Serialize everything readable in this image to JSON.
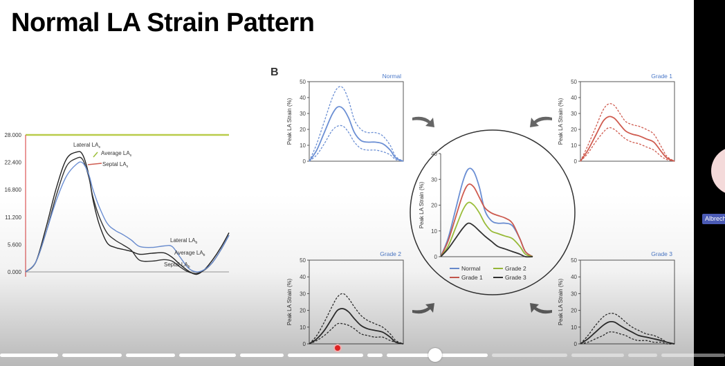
{
  "slide": {
    "title": "Normal LA Strain Pattern",
    "panel_b_letter": "B"
  },
  "presenter": {
    "name": "Albrecht"
  },
  "colors": {
    "normal": "#6b8fd4",
    "grade1": "#cf5b4f",
    "grade2": "#9cbf3a",
    "grade3": "#333333",
    "panel_title": "#4a78c8"
  },
  "chart_data": [
    {
      "type": "line",
      "id": "left-trace",
      "title": "",
      "y_ticks": [
        "28.000",
        "22.400",
        "16.800",
        "11.200",
        "5.600",
        "0.000"
      ],
      "ylim": [
        0,
        28
      ],
      "xlim": [
        0,
        100
      ],
      "annotations": {
        "lateral_las": "Lateral LA",
        "average_las": "Average LA",
        "septal_las": "Septal LA",
        "lateral_lab": "Lateral LA",
        "average_lab": "Average LA",
        "septal_lab": "Septal LA",
        "sub_s": "s",
        "sub_b": "b"
      },
      "series": [
        {
          "name": "Lateral LA",
          "color": "#222222",
          "x": [
            0,
            5,
            10,
            15,
            20,
            25,
            28,
            31,
            33,
            36,
            40,
            44,
            48,
            52,
            56,
            62,
            68,
            72,
            76,
            80,
            84,
            88,
            92,
            96,
            100
          ],
          "y": [
            0,
            2,
            9,
            17,
            23,
            24.5,
            24,
            20,
            15,
            10,
            6,
            5,
            4.6,
            4.2,
            3.6,
            3.8,
            3.9,
            3,
            1.5,
            0.2,
            -0.5,
            0.5,
            2.5,
            5,
            8
          ]
        },
        {
          "name": "Average LA",
          "color": "#333333",
          "x": [
            0,
            5,
            10,
            15,
            20,
            25,
            28,
            31,
            33,
            36,
            40,
            44,
            48,
            52,
            56,
            62,
            68,
            72,
            76,
            80,
            84,
            88,
            92,
            96,
            100
          ],
          "y": [
            0,
            2,
            8,
            15.5,
            21.5,
            23.2,
            23,
            19.5,
            15.5,
            11.5,
            8,
            6.5,
            5.5,
            4.4,
            2.4,
            2.2,
            2.5,
            2.2,
            1,
            0,
            -0.3,
            0.4,
            2,
            4.5,
            7.5
          ]
        },
        {
          "name": "Septal LA",
          "color": "#6b8fd4",
          "x": [
            0,
            5,
            10,
            15,
            20,
            25,
            28,
            31,
            33,
            36,
            40,
            44,
            48,
            52,
            56,
            62,
            68,
            72,
            76,
            80,
            84,
            88,
            92,
            96,
            100
          ],
          "y": [
            0,
            2,
            8,
            14.5,
            19.5,
            22,
            22.3,
            20,
            17,
            13.5,
            10,
            8.5,
            7.6,
            6.5,
            5.2,
            5,
            5.3,
            5.2,
            3,
            0.8,
            0,
            0.5,
            2,
            4.5,
            7.5
          ]
        }
      ]
    },
    {
      "type": "line",
      "id": "panel-normal",
      "title": "Normal",
      "ylabel": "Peak LA Strain (%)",
      "y_ticks": [
        "0",
        "10",
        "20",
        "30",
        "40",
        "50"
      ],
      "ylim": [
        0,
        50
      ],
      "series": [
        {
          "name": "mean",
          "style": "solid",
          "color": "#6b8fd4",
          "x": [
            0,
            8,
            16,
            24,
            30,
            36,
            42,
            48,
            55,
            62,
            70,
            78,
            86,
            92,
            100
          ],
          "y": [
            0,
            7,
            18,
            29,
            34,
            33,
            27,
            18,
            13,
            12,
            12,
            11,
            7,
            2,
            0
          ]
        },
        {
          "name": "upper",
          "style": "dashed",
          "color": "#6b8fd4",
          "x": [
            0,
            8,
            16,
            24,
            30,
            36,
            42,
            48,
            55,
            62,
            70,
            78,
            86,
            92,
            100
          ],
          "y": [
            0,
            11,
            25,
            39,
            46,
            46,
            38,
            26,
            20,
            18,
            18,
            16,
            10,
            3,
            0
          ]
        },
        {
          "name": "lower",
          "style": "dashed",
          "color": "#6b8fd4",
          "x": [
            0,
            8,
            16,
            24,
            30,
            36,
            42,
            48,
            55,
            62,
            70,
            78,
            86,
            92,
            100
          ],
          "y": [
            0,
            4,
            11,
            19,
            22,
            22,
            18,
            12,
            8,
            7,
            7,
            6,
            4,
            1,
            0
          ]
        }
      ]
    },
    {
      "type": "line",
      "id": "panel-grade1",
      "title": "Grade 1",
      "ylabel": "Peak LA Strain (%)",
      "y_ticks": [
        "0",
        "10",
        "20",
        "30",
        "40",
        "50"
      ],
      "ylim": [
        0,
        50
      ],
      "series": [
        {
          "name": "mean",
          "style": "solid",
          "color": "#cf5b4f",
          "x": [
            0,
            8,
            16,
            24,
            30,
            36,
            42,
            48,
            55,
            62,
            70,
            78,
            86,
            92,
            100
          ],
          "y": [
            0,
            7,
            16,
            25,
            28,
            27,
            23,
            19,
            17,
            16,
            14,
            12,
            6,
            2,
            0
          ]
        },
        {
          "name": "upper",
          "style": "dashed",
          "color": "#cf5b4f",
          "x": [
            0,
            8,
            16,
            24,
            30,
            36,
            42,
            48,
            55,
            62,
            70,
            78,
            86,
            92,
            100
          ],
          "y": [
            0,
            10,
            21,
            32,
            36,
            35,
            30,
            25,
            23,
            22,
            20,
            17,
            9,
            3,
            0
          ]
        },
        {
          "name": "lower",
          "style": "dashed",
          "color": "#cf5b4f",
          "x": [
            0,
            8,
            16,
            24,
            30,
            36,
            42,
            48,
            55,
            62,
            70,
            78,
            86,
            92,
            100
          ],
          "y": [
            0,
            5,
            12,
            18,
            21,
            20,
            17,
            14,
            12,
            11,
            9,
            7,
            3,
            1,
            0
          ]
        }
      ]
    },
    {
      "type": "line",
      "id": "panel-grade2",
      "title": "Grade 2",
      "ylabel": "Peak LA Strain (%)",
      "y_ticks": [
        "0",
        "10",
        "20",
        "30",
        "40",
        "50"
      ],
      "ylim": [
        0,
        50
      ],
      "series": [
        {
          "name": "mean",
          "style": "solid",
          "color": "#333333",
          "x": [
            0,
            8,
            16,
            24,
            30,
            36,
            42,
            48,
            55,
            62,
            70,
            78,
            86,
            92,
            100
          ],
          "y": [
            0,
            3,
            8,
            15,
            20,
            21,
            19,
            15,
            11,
            9,
            8,
            7,
            4,
            1,
            0
          ]
        },
        {
          "name": "upper",
          "style": "dashed",
          "color": "#333333",
          "x": [
            0,
            8,
            16,
            24,
            30,
            36,
            42,
            48,
            55,
            62,
            70,
            78,
            86,
            92,
            100
          ],
          "y": [
            0,
            5,
            13,
            22,
            28,
            30,
            27,
            22,
            17,
            14,
            12,
            10,
            6,
            2,
            0
          ]
        },
        {
          "name": "lower",
          "style": "dashed",
          "color": "#333333",
          "x": [
            0,
            8,
            16,
            24,
            30,
            36,
            42,
            48,
            55,
            62,
            70,
            78,
            86,
            92,
            100
          ],
          "y": [
            0,
            2,
            5,
            9,
            12,
            12,
            11,
            9,
            6,
            5,
            4,
            4,
            2,
            1,
            0
          ]
        }
      ]
    },
    {
      "type": "line",
      "id": "panel-grade3",
      "title": "Grade 3",
      "ylabel": "Peak LA Strain (%)",
      "y_ticks": [
        "0",
        "10",
        "20",
        "30",
        "40",
        "50"
      ],
      "ylim": [
        0,
        50
      ],
      "series": [
        {
          "name": "mean",
          "style": "solid",
          "color": "#333333",
          "x": [
            0,
            8,
            16,
            24,
            30,
            36,
            42,
            48,
            55,
            62,
            70,
            78,
            86,
            92,
            100
          ],
          "y": [
            0,
            3,
            7,
            11,
            13,
            13,
            11,
            9,
            7,
            5,
            4,
            3,
            2,
            1,
            0
          ]
        },
        {
          "name": "upper",
          "style": "dashed",
          "color": "#333333",
          "x": [
            0,
            8,
            16,
            24,
            30,
            36,
            42,
            48,
            55,
            62,
            70,
            78,
            86,
            92,
            100
          ],
          "y": [
            0,
            5,
            11,
            16,
            18,
            18,
            16,
            13,
            10,
            8,
            6,
            5,
            3,
            1,
            0
          ]
        },
        {
          "name": "lower",
          "style": "dashed",
          "color": "#333333",
          "x": [
            0,
            8,
            16,
            24,
            30,
            36,
            42,
            48,
            55,
            62,
            70,
            78,
            86,
            92,
            100
          ],
          "y": [
            0,
            1,
            3,
            5,
            7,
            7,
            6,
            5,
            3,
            2,
            2,
            1,
            1,
            0,
            0
          ]
        }
      ]
    },
    {
      "type": "line",
      "id": "center-combined",
      "title": "",
      "ylabel": "Peak LA Strain (%)",
      "y_ticks": [
        "0",
        "10",
        "20",
        "30",
        "40"
      ],
      "ylim": [
        0,
        40
      ],
      "legend": [
        "Normal",
        "Grade 2",
        "Grade 1",
        "Grade 3"
      ],
      "series": [
        {
          "name": "Normal",
          "color": "#6b8fd4",
          "x": [
            0,
            8,
            16,
            24,
            30,
            36,
            42,
            48,
            55,
            62,
            70,
            78,
            86,
            92,
            100
          ],
          "y": [
            0,
            7,
            18,
            29,
            34,
            33,
            27,
            18,
            14,
            13,
            13,
            12,
            7,
            2,
            0
          ]
        },
        {
          "name": "Grade 1",
          "color": "#cf5b4f",
          "x": [
            0,
            8,
            16,
            24,
            30,
            36,
            42,
            48,
            55,
            62,
            70,
            78,
            86,
            92,
            100
          ],
          "y": [
            0,
            6,
            15,
            24,
            28,
            27,
            23,
            19,
            17,
            16,
            15,
            13,
            7,
            2,
            0
          ]
        },
        {
          "name": "Grade 2",
          "color": "#9cbf3a",
          "x": [
            0,
            8,
            16,
            24,
            30,
            36,
            42,
            48,
            55,
            62,
            70,
            78,
            86,
            92,
            100
          ],
          "y": [
            0,
            4,
            11,
            18,
            21,
            20,
            17,
            13,
            10,
            9,
            8,
            7,
            4,
            1,
            0
          ]
        },
        {
          "name": "Grade 3",
          "color": "#333333",
          "x": [
            0,
            8,
            16,
            24,
            30,
            36,
            42,
            48,
            55,
            62,
            70,
            78,
            86,
            92,
            100
          ],
          "y": [
            0,
            3,
            7,
            11,
            13,
            12,
            10,
            8,
            6,
            4,
            3,
            2,
            1,
            0,
            0
          ]
        }
      ]
    }
  ],
  "player": {
    "progress": 0.6
  }
}
